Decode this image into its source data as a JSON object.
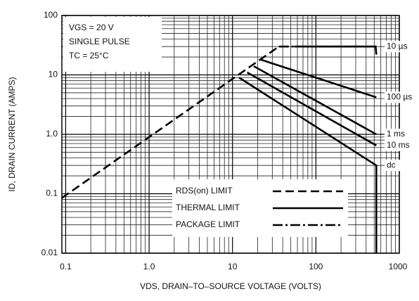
{
  "chart_data": {
    "type": "line",
    "x_label": "VDS, DRAIN–TO–SOURCE VOLTAGE (VOLTS)",
    "y_label": "ID, DRAIN CURRENT (AMPS)",
    "annotations": [
      "VGS = 20 V",
      "SINGLE PULSE",
      "TC = 25°C"
    ],
    "xscale": "log",
    "yscale": "log",
    "grid": true,
    "xlim": [
      0.09,
      1000
    ],
    "xticks": [
      0.1,
      {
        "value": 1,
        "label": "1.0"
      },
      10,
      100,
      1000
    ],
    "ylim": [
      0.01,
      100
    ],
    "yticks": [
      0.01,
      0.1,
      {
        "value": 1,
        "label": "1.0"
      },
      10,
      100
    ],
    "legend": [
      {
        "label": "RDS(on) LIMIT",
        "dash": "12,6"
      },
      {
        "label": "THERMAL LIMIT",
        "dash": "none"
      },
      {
        "label": "PACKAGE LIMIT",
        "dash": "14,4,3,4"
      }
    ],
    "series": [
      {
        "dash": "12,6",
        "color": "#000",
        "x": [
          0.09,
          36
        ],
        "values": [
          0.085,
          30
        ]
      },
      {
        "dash": "14,4,3,4",
        "color": "#000",
        "x": [
          36,
          530
        ],
        "values": [
          30,
          30
        ]
      },
      {
        "name": "10 µs",
        "dash": "none",
        "color": "#000",
        "x": [
          55,
          520,
          530
        ],
        "values": [
          30,
          30,
          22
        ]
      },
      {
        "name": "100 µs",
        "dash": "none",
        "color": "#000",
        "x": [
          22,
          530
        ],
        "values": [
          18,
          4.2
        ]
      },
      {
        "name": "1 ms",
        "dash": "none",
        "color": "#000",
        "x": [
          18,
          530
        ],
        "values": [
          14,
          1
        ]
      },
      {
        "name": "10 ms",
        "dash": "none",
        "color": "#000",
        "x": [
          15,
          530
        ],
        "values": [
          11,
          0.65
        ]
      },
      {
        "name": "dc",
        "dash": "none",
        "color": "#000",
        "x": [
          12,
          530,
          530
        ],
        "values": [
          9,
          0.3,
          0.01
        ]
      }
    ]
  }
}
